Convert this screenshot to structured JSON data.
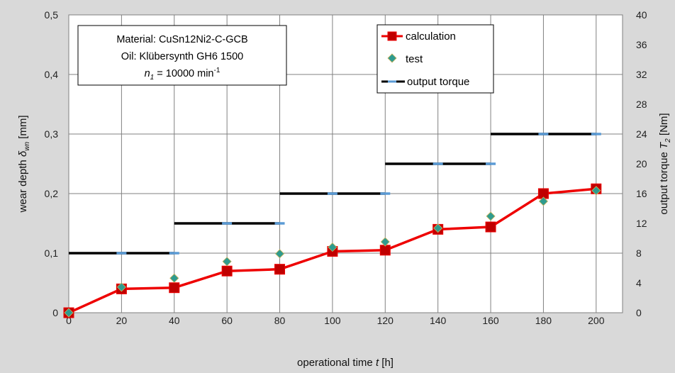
{
  "chart_data": {
    "type": "line",
    "x": [
      0,
      20,
      40,
      60,
      80,
      100,
      120,
      140,
      160,
      180,
      200
    ],
    "xlabel": "operational time t [h]",
    "ylabel_left": "wear depth δwn [mm]",
    "ylabel_right": "output torque T2 [Nm]",
    "xlim": [
      0,
      210
    ],
    "ylim_left": [
      0,
      0.5
    ],
    "ylim_right": [
      0,
      40
    ],
    "x_ticks": [
      "0",
      "20",
      "40",
      "60",
      "80",
      "100",
      "120",
      "140",
      "160",
      "180",
      "200"
    ],
    "y_left_ticks": [
      "0",
      "0,1",
      "0,2",
      "0,3",
      "0,4",
      "0,5"
    ],
    "y_right_ticks": [
      "0",
      "4",
      "8",
      "12",
      "16",
      "20",
      "24",
      "28",
      "32",
      "36",
      "40"
    ],
    "grid": true,
    "legend_position": "top-center",
    "series": [
      {
        "name": "calculation",
        "axis": "left",
        "color": "#ee0000",
        "marker": "square",
        "values": [
          0.0,
          0.04,
          0.042,
          0.07,
          0.073,
          0.103,
          0.105,
          0.14,
          0.144,
          0.2,
          0.208
        ]
      },
      {
        "name": "test",
        "axis": "left",
        "color": "#2e9b8f",
        "marker": "diamond",
        "values": [
          0.0,
          0.043,
          0.058,
          0.086,
          0.099,
          0.11,
          0.119,
          0.142,
          0.162,
          0.187,
          0.205
        ]
      },
      {
        "name": "output torque",
        "axis": "right",
        "color": "#000000",
        "marker_color": "#5b9bd5",
        "segments": [
          {
            "x0": 0,
            "x1": 40,
            "value": 8
          },
          {
            "x0": 40,
            "x1": 80,
            "value": 12
          },
          {
            "x0": 80,
            "x1": 120,
            "value": 16
          },
          {
            "x0": 120,
            "x1": 160,
            "value": 20
          },
          {
            "x0": 160,
            "x1": 200,
            "value": 24
          }
        ]
      }
    ]
  },
  "info_box": {
    "material": "Material:  CuSn12Ni2-C-GCB",
    "oil": "Oil: Klübersynth GH6 1500",
    "speed_prefix": "n",
    "speed_sub": "1",
    "speed_value": " = 10000 min",
    "speed_sup": "-1"
  },
  "axis_text": {
    "x_main": "operational time ",
    "x_var": "t",
    "x_unit": " [h]",
    "yl_main": "wear depth  ",
    "yl_var": "δ",
    "yl_sub": "wn",
    "yl_unit": "  [mm]",
    "yr_main": "output torque ",
    "yr_var": "T",
    "yr_sub": "2",
    "yr_unit": " [Nm]"
  },
  "colors": {
    "plot_bg": "#ffffff",
    "frame_bg": "#d9d9d9",
    "grid": "#808080"
  }
}
